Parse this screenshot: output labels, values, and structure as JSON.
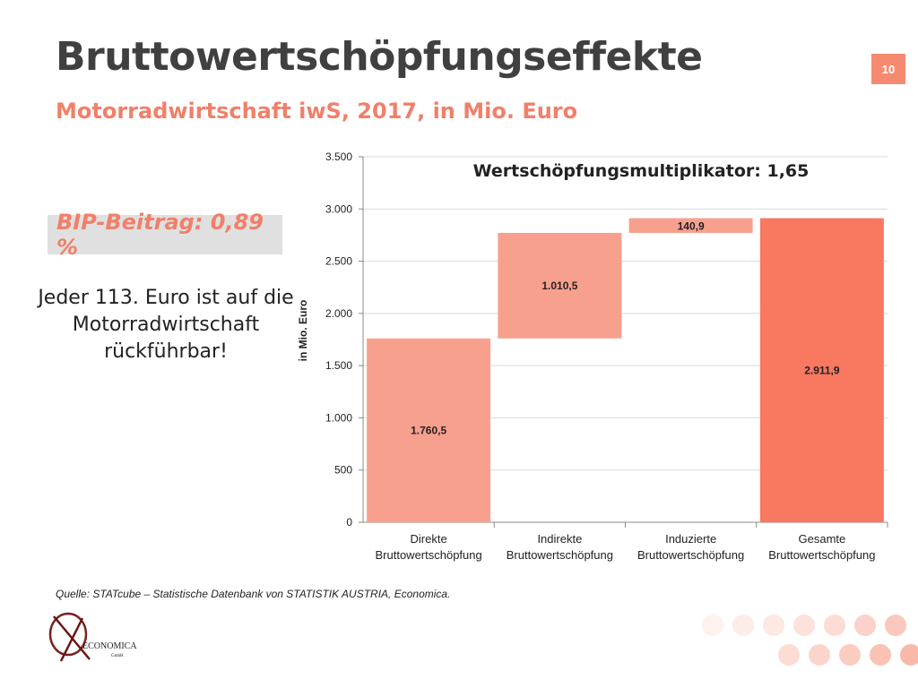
{
  "slide": {
    "title": "Bruttowertschöpfungseffekte",
    "subtitle": "Motorradwirtschaft iwS, 2017, in Mio. Euro",
    "page_number": "10",
    "bip_label": "BIP-Beitrag: 0,89 %",
    "fact_line1": "Jeder 113. Euro ist auf die",
    "fact_line2": "Motorradwirtschaft",
    "fact_line3": "rückführbar!",
    "source": "Quelle: STATcube – Statistische Datenbank von STATISTIK AUSTRIA, Economica.",
    "logo_text": "ECONOMICA",
    "logo_sub": "GmbH"
  },
  "colors": {
    "accent": "#f0806a",
    "bar_light": "#f8a08e",
    "bar_dark": "#f87860",
    "title_gray": "#404040"
  },
  "chart_data": {
    "type": "bar",
    "subtype": "waterfall",
    "annotation": "Wertschöpfungsmultiplikator: 1,65",
    "ylabel": "in Mio. Euro",
    "xlabel": "",
    "ylim": [
      0,
      3500
    ],
    "yticks": [
      0,
      500,
      1000,
      1500,
      2000,
      2500,
      3000,
      3500
    ],
    "ytick_labels": [
      "0",
      "500",
      "1.000",
      "1.500",
      "2.000",
      "2.500",
      "3.000",
      "3.500"
    ],
    "grid": true,
    "categories": [
      [
        "Direkte",
        "Bruttowertschöpfung"
      ],
      [
        "Indirekte",
        "Bruttowertschöpfung"
      ],
      [
        "Induzierte",
        "Bruttowertschöpfung"
      ],
      [
        "Gesamte",
        "Bruttowertschöpfung"
      ]
    ],
    "values": [
      1760.5,
      1010.5,
      140.9,
      2911.9
    ],
    "bases": [
      0,
      1760.5,
      2771.0,
      0
    ],
    "value_labels": [
      "1.760,5",
      "1.010,5",
      "140,9",
      "2.911,9"
    ]
  }
}
